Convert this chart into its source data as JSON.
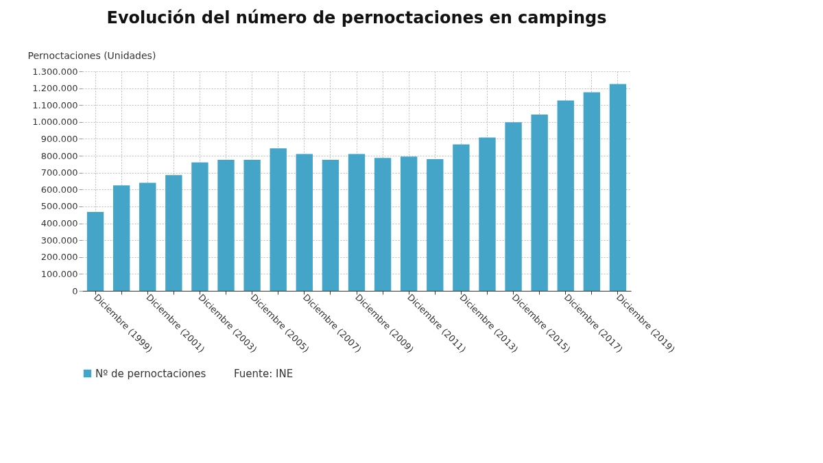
{
  "chart_data": {
    "type": "bar",
    "title": "Evolución del número de pernoctaciones en campings",
    "ylabel": "Pernoctaciones (Unidades)",
    "categories": [
      "Diciembre (1999)",
      null,
      "Diciembre (2001)",
      null,
      "Diciembre (2003)",
      null,
      "Diciembre (2005)",
      null,
      "Diciembre (2007)",
      null,
      "Diciembre (2009)",
      null,
      "Diciembre (2011)",
      null,
      "Diciembre (2013)",
      null,
      "Diciembre (2015)",
      null,
      "Diciembre (2017)",
      null,
      "Diciembre (2019)"
    ],
    "series": [
      {
        "name": "Nº de pernoctaciones",
        "color": "#45a5c8",
        "values": [
          467000,
          625000,
          640000,
          686000,
          761000,
          776000,
          776000,
          844000,
          810000,
          776000,
          810000,
          787000,
          795000,
          780000,
          867000,
          908000,
          998000,
          1044000,
          1127000,
          1176000,
          1225000
        ]
      }
    ],
    "ylim": [
      0,
      1300000
    ],
    "yticks": [
      0,
      {
        "value": 100000,
        "label": "100.000"
      },
      {
        "value": 200000,
        "label": "200.000"
      },
      {
        "value": 300000,
        "label": "300.000"
      },
      {
        "value": 400000,
        "label": "400.000"
      },
      {
        "value": 500000,
        "label": "500.000"
      },
      {
        "value": 600000,
        "label": "600.000"
      },
      {
        "value": 700000,
        "label": "700.000"
      },
      {
        "value": 800000,
        "label": "800.000"
      },
      {
        "value": 900000,
        "label": "900.000"
      },
      {
        "value": 1000000,
        "label": "1.000.000"
      },
      {
        "value": 1100000,
        "label": "1.100.000"
      },
      {
        "value": 1200000,
        "label": "1.200.000"
      },
      {
        "value": 1300000,
        "label": "1.300.000"
      }
    ],
    "grid": true,
    "legend": "bottom",
    "annotations": [
      "Fuente: INE"
    ]
  }
}
